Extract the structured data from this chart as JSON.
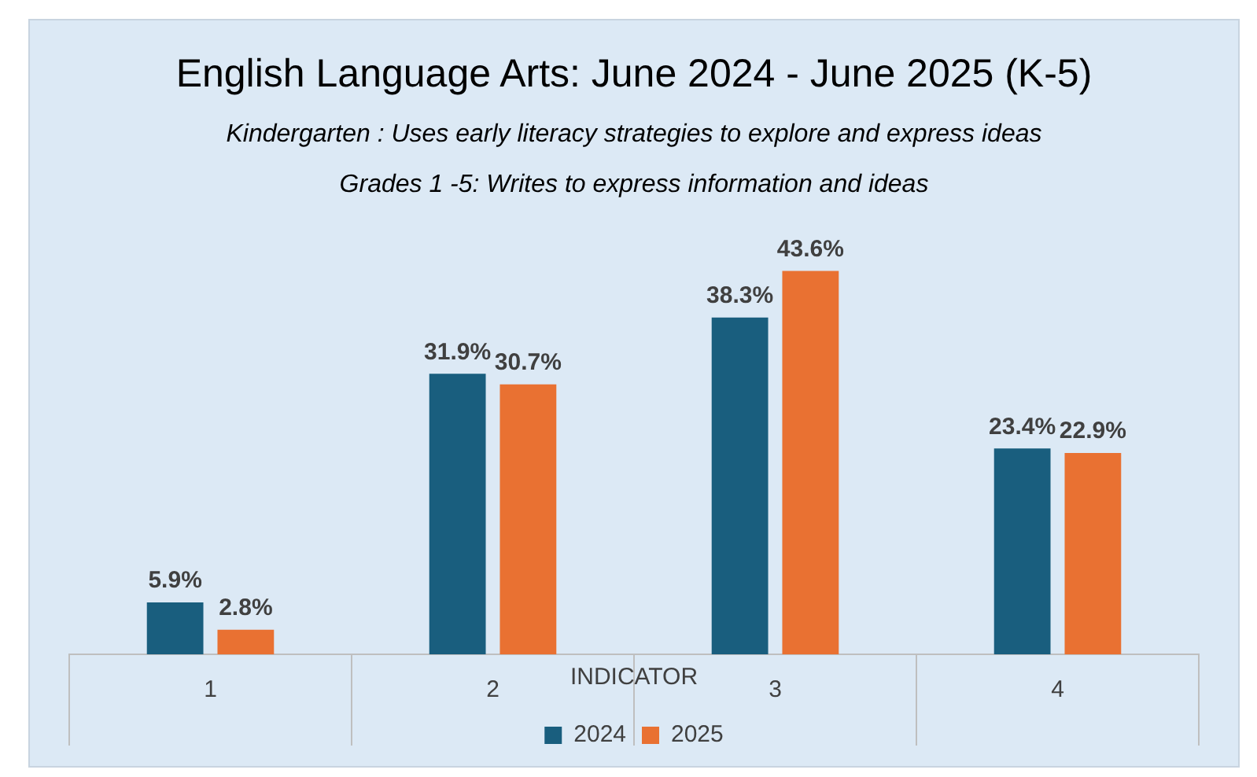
{
  "chart_data": {
    "type": "bar",
    "title": "English Language Arts: June 2024  - June 2025 (K-5)",
    "subtitle": "Kindergarten   : Uses early literacy strategies to explore and express ideas",
    "annotations": [
      "Grades 1 -5: Writes to express information and ideas"
    ],
    "xlabel": "INDICATOR",
    "categories": [
      "1",
      "2",
      "3",
      "4"
    ],
    "series": [
      {
        "name": "2024",
        "color": "#195e7e",
        "values": [
          5.9,
          31.9,
          38.3,
          23.4
        ],
        "value_labels": [
          "5.9%",
          "31.9%",
          "38.3%",
          "23.4%"
        ]
      },
      {
        "name": "2025",
        "color": "#e97132",
        "values": [
          2.8,
          30.7,
          43.6,
          22.9
        ],
        "value_labels": [
          "2.8%",
          "30.7%",
          "43.6%",
          "22.9%"
        ]
      }
    ],
    "legend": "bottom"
  }
}
